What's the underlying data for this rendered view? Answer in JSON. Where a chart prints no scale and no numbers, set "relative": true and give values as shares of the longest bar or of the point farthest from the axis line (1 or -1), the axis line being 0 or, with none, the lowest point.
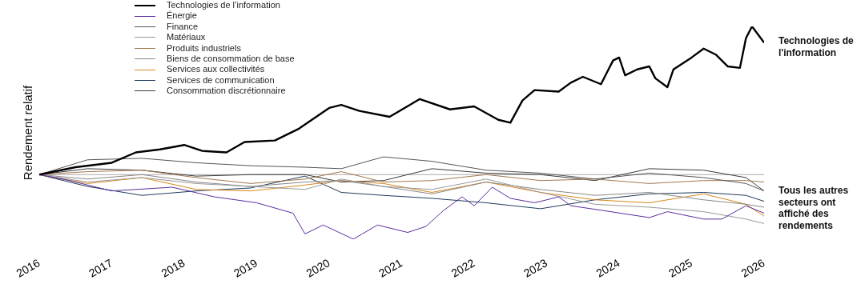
{
  "chart_data": {
    "type": "line",
    "relative": true,
    "ylabel": "Rendement relatif",
    "legend": "top left",
    "marker": "none",
    "line_style": "solid",
    "grid": false,
    "xlim": [
      "2016",
      "2026-01"
    ],
    "xticks": [
      "2016",
      "2017",
      "2018",
      "2019",
      "2020",
      "2021",
      "2022",
      "2023",
      "2024",
      "2025",
      "2026"
    ],
    "ref_lines": [
      {
        "axis": "y",
        "value": 0,
        "color": "#aaaaaa"
      }
    ],
    "annotations": [
      {
        "text": "Technologies de l'information",
        "x": "2026-01",
        "y": 0.86
      },
      {
        "text": "Tous les autres secteurs ont affiché des rendements",
        "x": "2026-01",
        "y": -0.23
      }
    ],
    "series": [
      {
        "name": "Technologies de l’information",
        "color": "#000000",
        "x": [
          "2016-01",
          "2016-07",
          "2017-01",
          "2017-05",
          "2017-09",
          "2018-01",
          "2018-04",
          "2018-08",
          "2018-11",
          "2019-04",
          "2019-08",
          "2020-01",
          "2020-03",
          "2020-06",
          "2020-11",
          "2021-04",
          "2021-09",
          "2022-01",
          "2022-05",
          "2022-07",
          "2022-09",
          "2022-11",
          "2023-03",
          "2023-05",
          "2023-07",
          "2023-10",
          "2023-12",
          "2024-01",
          "2024-02",
          "2024-04",
          "2024-06",
          "2024-07",
          "2024-09",
          "2024-10",
          "2025-01",
          "2025-03",
          "2025-05",
          "2025-07",
          "2025-09",
          "2025-10",
          "2025-11",
          "2026-01"
        ],
        "values": [
          0,
          0.05,
          0.08,
          0.15,
          0.17,
          0.2,
          0.16,
          0.15,
          0.22,
          0.23,
          0.31,
          0.45,
          0.47,
          0.43,
          0.39,
          0.51,
          0.44,
          0.46,
          0.37,
          0.35,
          0.5,
          0.57,
          0.56,
          0.62,
          0.66,
          0.61,
          0.77,
          0.79,
          0.67,
          0.71,
          0.73,
          0.65,
          0.59,
          0.71,
          0.79,
          0.85,
          0.81,
          0.73,
          0.72,
          0.92,
          1,
          0.89
        ]
      },
      {
        "name": "Énergie",
        "color": "#5b2c9f",
        "x": [
          "2016-01",
          "2016-06",
          "2017-01",
          "2017-11",
          "2018-06",
          "2019-01",
          "2019-07",
          "2019-09",
          "2019-12",
          "2020-05",
          "2020-09",
          "2021-02",
          "2021-05",
          "2021-08",
          "2021-11",
          "2022-01",
          "2022-04",
          "2022-07",
          "2022-11",
          "2023-03",
          "2023-05",
          "2023-10",
          "2024-06",
          "2024-09",
          "2025-03",
          "2025-06",
          "2025-10",
          "2026-01"
        ],
        "values": [
          0,
          -0.04,
          -0.11,
          -0.085,
          -0.15,
          -0.19,
          -0.26,
          -0.4,
          -0.34,
          -0.435,
          -0.34,
          -0.39,
          -0.35,
          -0.24,
          -0.15,
          -0.21,
          -0.085,
          -0.16,
          -0.19,
          -0.15,
          -0.21,
          -0.24,
          -0.29,
          -0.25,
          -0.3,
          -0.3,
          -0.21,
          -0.26
        ]
      },
      {
        "name": "Finance",
        "color": "#555555",
        "x": [
          "2016-01",
          "2016-09",
          "2017-06",
          "2018-03",
          "2018-12",
          "2019-09",
          "2020-03",
          "2020-10",
          "2021-06",
          "2022-03",
          "2022-12",
          "2023-09",
          "2024-06",
          "2025-03",
          "2025-10",
          "2026-01"
        ],
        "values": [
          0,
          0.1,
          0.11,
          0.08,
          0.06,
          0.05,
          0.04,
          0.12,
          0.09,
          0.03,
          0.01,
          -0.03,
          0.01,
          -0.02,
          -0.06,
          -0.11
        ]
      },
      {
        "name": "Matériaux",
        "color": "#999999",
        "x": [
          "2016-01",
          "2016-09",
          "2017-06",
          "2018-03",
          "2018-12",
          "2019-09",
          "2020-03",
          "2020-10",
          "2021-06",
          "2022-03",
          "2022-12",
          "2023-09",
          "2024-06",
          "2025-03",
          "2025-10",
          "2026-01"
        ],
        "values": [
          0,
          -0.05,
          -0.02,
          -0.06,
          -0.08,
          -0.1,
          -0.03,
          -0.08,
          -0.1,
          -0.03,
          -0.12,
          -0.2,
          -0.22,
          -0.25,
          -0.3,
          -0.33
        ]
      },
      {
        "name": "Produits industriels",
        "color": "#a07850",
        "x": [
          "2016-01",
          "2016-09",
          "2017-06",
          "2018-03",
          "2018-12",
          "2019-09",
          "2020-03",
          "2020-10",
          "2021-06",
          "2022-03",
          "2022-12",
          "2023-09",
          "2024-06",
          "2025-03",
          "2025-10",
          "2026-01"
        ],
        "values": [
          0,
          0.02,
          0.03,
          -0.02,
          -0.06,
          -0.03,
          0.02,
          -0.05,
          -0.04,
          0,
          -0.04,
          -0.03,
          -0.06,
          -0.04,
          -0.04,
          -0.05
        ]
      },
      {
        "name": "Biens de consommation de base",
        "color": "#888888",
        "x": [
          "2016-01",
          "2016-09",
          "2017-06",
          "2018-03",
          "2018-12",
          "2019-09",
          "2020-03",
          "2020-10",
          "2021-06",
          "2022-03",
          "2022-12",
          "2023-09",
          "2024-06",
          "2025-03",
          "2025-10",
          "2026-01"
        ],
        "values": [
          0,
          -0.03,
          0,
          -0.05,
          -0.08,
          -0.05,
          -0.04,
          -0.08,
          -0.13,
          -0.05,
          -0.1,
          -0.14,
          -0.12,
          -0.17,
          -0.2,
          -0.22
        ]
      },
      {
        "name": "Services aux collectivités",
        "color": "#d9861c",
        "x": [
          "2016-01",
          "2016-09",
          "2017-06",
          "2018-03",
          "2018-12",
          "2019-09",
          "2020-03",
          "2020-10",
          "2021-06",
          "2022-03",
          "2022-12",
          "2023-09",
          "2024-06",
          "2025-03",
          "2025-10",
          "2026-01"
        ],
        "values": [
          0,
          -0.06,
          -0.02,
          -0.1,
          -0.11,
          -0.07,
          -0.04,
          -0.06,
          -0.12,
          -0.05,
          -0.12,
          -0.17,
          -0.19,
          -0.13,
          -0.2,
          -0.28
        ]
      },
      {
        "name": "Services de communication",
        "color": "#1e3b5a",
        "x": [
          "2016-01",
          "2016-09",
          "2017-06",
          "2018-03",
          "2018-12",
          "2019-09",
          "2020-03",
          "2020-10",
          "2021-06",
          "2022-03",
          "2022-12",
          "2023-09",
          "2024-06",
          "2025-03",
          "2025-10",
          "2026-01"
        ],
        "values": [
          0,
          -0.08,
          -0.14,
          -0.11,
          -0.09,
          -0.01,
          -0.12,
          -0.14,
          -0.16,
          -0.19,
          -0.23,
          -0.17,
          -0.13,
          -0.12,
          -0.14,
          -0.18
        ]
      },
      {
        "name": "Consommation discrétionnaire",
        "color": "#3a3a3a",
        "x": [
          "2016-01",
          "2016-09",
          "2017-06",
          "2018-03",
          "2018-12",
          "2019-09",
          "2020-03",
          "2020-10",
          "2021-06",
          "2022-03",
          "2022-12",
          "2023-09",
          "2024-06",
          "2025-03",
          "2025-10",
          "2026-01"
        ],
        "values": [
          0,
          0.04,
          0.03,
          -0.01,
          0,
          0,
          -0.05,
          -0.04,
          0.04,
          0.01,
          0,
          -0.04,
          0.04,
          0.03,
          -0.02,
          -0.11
        ]
      }
    ]
  }
}
